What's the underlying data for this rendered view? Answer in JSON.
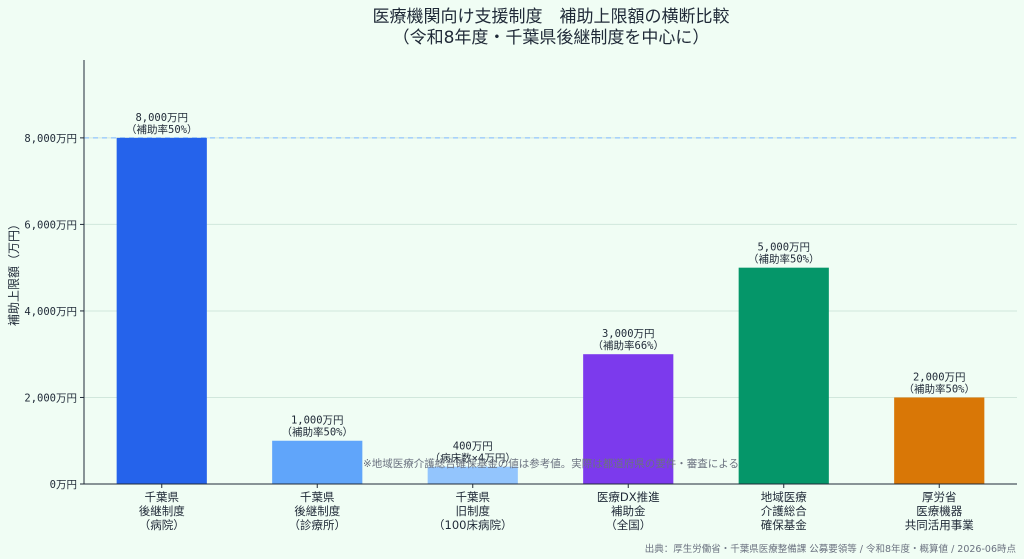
{
  "chart_data": {
    "type": "bar",
    "title_lines": [
      "医療機関向け支援制度　補助上限額の横断比較",
      "（令和8年度・千葉県後継制度を中心に）"
    ],
    "ylabel": "補助上限額（万円）",
    "ylim": [
      0,
      9800
    ],
    "yticks": [
      0,
      2000,
      4000,
      6000,
      8000
    ],
    "ytick_labels": [
      "0万円",
      "2,000万円",
      "4,000万円",
      "6,000万円",
      "8,000万円"
    ],
    "grid": true,
    "reference_line": {
      "value": 8000,
      "color": "#93c5fd"
    },
    "categories": [
      {
        "lines": [
          "千葉県",
          "後継制度",
          "（病院）"
        ]
      },
      {
        "lines": [
          "千葉県",
          "後継制度",
          "（診療所）"
        ]
      },
      {
        "lines": [
          "千葉県",
          "旧制度",
          "（100床病院）"
        ]
      },
      {
        "lines": [
          "医療DX推進",
          "補助金",
          "（全国）"
        ]
      },
      {
        "lines": [
          "地域医療",
          "介護総合",
          "確保基金"
        ]
      },
      {
        "lines": [
          "厚労省",
          "医療機器",
          "共同活用事業"
        ]
      }
    ],
    "values": [
      8000,
      1000,
      400,
      3000,
      5000,
      2000
    ],
    "bar_labels": [
      [
        "8,000万円",
        "（補助率50%）"
      ],
      [
        "1,000万円",
        "（補助率50%）"
      ],
      [
        "400万円",
        "（病床数×4万円）"
      ],
      [
        "3,000万円",
        "（補助率66%）"
      ],
      [
        "5,000万円",
        "（補助率50%）"
      ],
      [
        "2,000万円",
        "（補助率50%）"
      ]
    ],
    "colors": [
      "#2563eb",
      "#60a5fa",
      "#93c5fd",
      "#7c3aed",
      "#059669",
      "#d97706"
    ],
    "annotation": "※地域医療介護総合確保基金の値は参考値。実際は都道府県の要件・審査による",
    "source": "出典：厚生労働省・千葉県医療整備課 公募要領等 / 令和8年度・概算値 / 2026-06時点"
  }
}
